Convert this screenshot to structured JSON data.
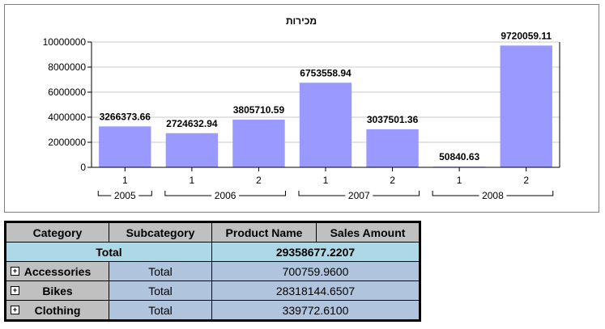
{
  "chart_data": {
    "type": "bar",
    "title": "מכירות",
    "ylim": [
      0,
      10000000
    ],
    "yticks": [
      0,
      2000000,
      4000000,
      6000000,
      8000000,
      10000000
    ],
    "ytick_labels": [
      "0",
      "2000000",
      "4000000",
      "6000000",
      "8000000",
      "10000000"
    ],
    "categories": [
      "1",
      "1",
      "2",
      "1",
      "2",
      "1",
      "2"
    ],
    "values": [
      3266373.66,
      2724632.94,
      3805710.59,
      6753558.94,
      3037501.36,
      50840.63,
      9720059.11
    ],
    "value_labels": [
      "3266373.66",
      "2724632.94",
      "3805710.59",
      "6753558.94",
      "3037501.36",
      "50840.63",
      "9720059.11"
    ],
    "groups": [
      {
        "label": "2005",
        "span": [
          0,
          0
        ]
      },
      {
        "label": "2006",
        "span": [
          1,
          2
        ]
      },
      {
        "label": "2007",
        "span": [
          3,
          4
        ]
      },
      {
        "label": "2008",
        "span": [
          5,
          6
        ]
      }
    ],
    "bar_color": "#9999ff",
    "grid": true,
    "legend": "none"
  },
  "matrix": {
    "headers": [
      "Category",
      "Subcategory",
      "Product Name",
      "Sales Amount"
    ],
    "total_label": "Total",
    "grand_total": "29358677.2207",
    "rows": [
      {
        "category": "Accessories",
        "subcategory": "Total",
        "amount": "700759.9600",
        "expander": "+"
      },
      {
        "category": "Bikes",
        "subcategory": "Total",
        "amount": "28318144.6507",
        "expander": "+"
      },
      {
        "category": "Clothing",
        "subcategory": "Total",
        "amount": "339772.6100",
        "expander": "+"
      }
    ],
    "colors": {
      "header": "#c0c0c0",
      "total": "#add8e6",
      "body": "#b0c4de"
    }
  }
}
